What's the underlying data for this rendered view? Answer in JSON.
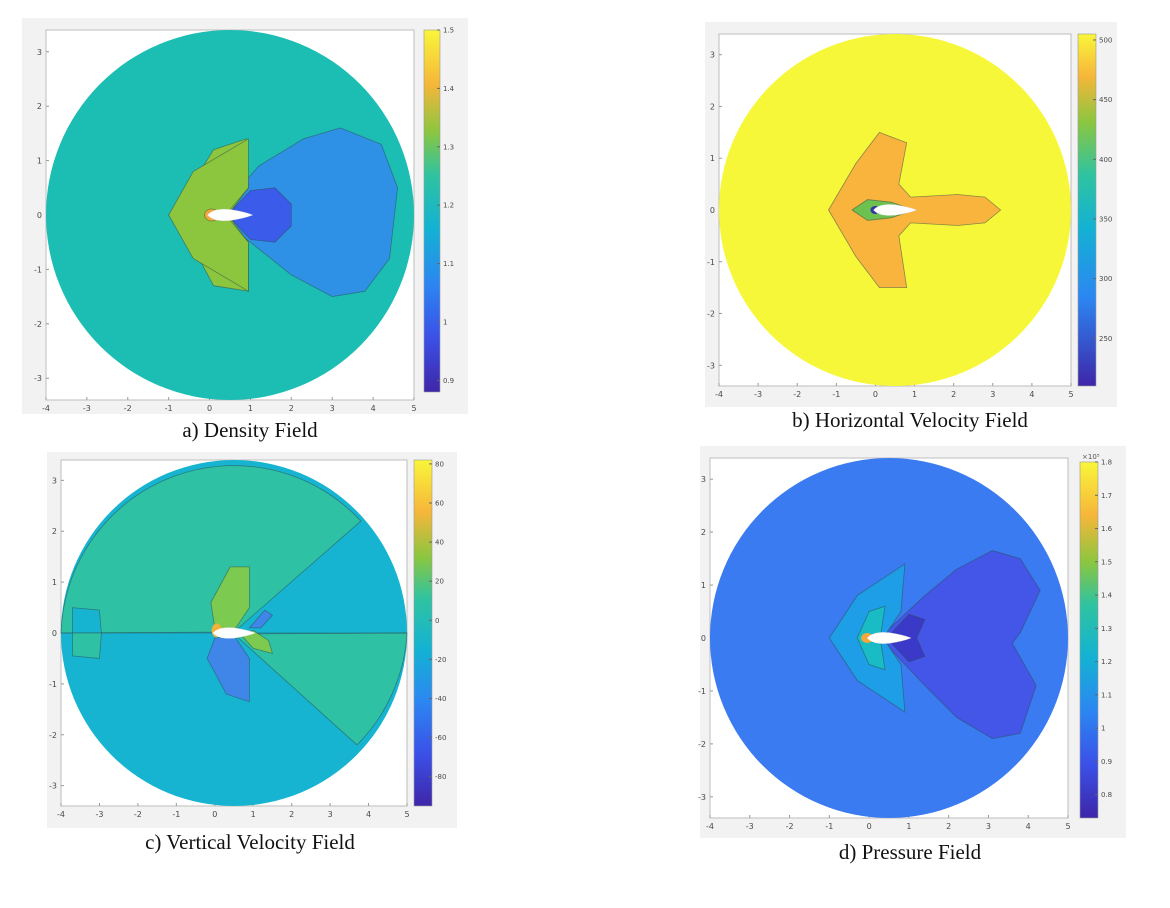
{
  "chart_data": [
    {
      "type": "heatmap",
      "caption": "a) Density Field",
      "xticks": [
        "-4",
        "-3",
        "-2",
        "-1",
        "0",
        "1",
        "2",
        "3",
        "4",
        "5"
      ],
      "yticks": [
        "3",
        "2",
        "1",
        "0",
        "-1",
        "-2",
        "-3"
      ],
      "xlim": [
        -4,
        5
      ],
      "ylim": [
        -3.4,
        3.4
      ],
      "colorbar": {
        "ticks": [
          "1.5",
          "1.4",
          "1.3",
          "1.2",
          "1.1",
          "1",
          "0.9"
        ],
        "range": [
          0.88,
          1.5
        ]
      },
      "regions": [
        {
          "name": "freestream",
          "value": 1.2,
          "color": "#1cbeb4"
        },
        {
          "name": "wake-low",
          "value": 1.1,
          "color": "#2f91e6"
        },
        {
          "name": "rear-core",
          "value": 1.0,
          "color": "#3b5bea"
        },
        {
          "name": "front-compression",
          "value": 1.3,
          "color": "#8cc63e"
        },
        {
          "name": "stagnation",
          "value": 1.4,
          "color": "#f5a93a"
        }
      ]
    },
    {
      "type": "heatmap",
      "caption": "b) Horizontal Velocity Field",
      "xticks": [
        "-4",
        "-3",
        "-2",
        "-1",
        "0",
        "1",
        "2",
        "3",
        "4",
        "5"
      ],
      "yticks": [
        "3",
        "2",
        "1",
        "0",
        "-1",
        "-2",
        "-3"
      ],
      "xlim": [
        -4,
        5
      ],
      "ylim": [
        -3.4,
        3.4
      ],
      "colorbar": {
        "ticks": [
          "500",
          "450",
          "400",
          "350",
          "300",
          "250"
        ],
        "range": [
          210,
          505
        ]
      },
      "regions": [
        {
          "name": "freestream",
          "value": 500,
          "color": "#f7f73a"
        },
        {
          "name": "front-slow",
          "value": 470,
          "color": "#f8b43d"
        },
        {
          "name": "near-body",
          "value": 400,
          "color": "#6cc14f"
        },
        {
          "name": "stagnation",
          "value": 250,
          "color": "#33389e"
        }
      ]
    },
    {
      "type": "heatmap",
      "caption": "c) Vertical Velocity Field",
      "xticks": [
        "-4",
        "-3",
        "-2",
        "-1",
        "0",
        "1",
        "2",
        "3",
        "4",
        "5"
      ],
      "yticks": [
        "3",
        "2",
        "1",
        "0",
        "-1",
        "-2",
        "-3"
      ],
      "xlim": [
        -4,
        5
      ],
      "ylim": [
        -3.4,
        3.4
      ],
      "colorbar": {
        "ticks": [
          "80",
          "60",
          "40",
          "20",
          "0",
          "-20",
          "-40",
          "-60",
          "-80"
        ],
        "range": [
          -95,
          82
        ]
      },
      "regions": [
        {
          "name": "upper-field",
          "value": 0,
          "color": "#2fc1a4"
        },
        {
          "name": "lower-field",
          "value": -10,
          "color": "#16b4d1"
        },
        {
          "name": "upward-lobe",
          "value": 20,
          "color": "#7cca4f"
        },
        {
          "name": "downward-lobe",
          "value": -40,
          "color": "#3f86e8"
        },
        {
          "name": "peak",
          "value": 60,
          "color": "#f1b23a"
        }
      ]
    },
    {
      "type": "heatmap",
      "caption": "d) Pressure Field",
      "xticks": [
        "-4",
        "-3",
        "-2",
        "-1",
        "0",
        "1",
        "2",
        "3",
        "4",
        "5"
      ],
      "yticks": [
        "3",
        "2",
        "1",
        "0",
        "-1",
        "-2",
        "-3"
      ],
      "xlim": [
        -4,
        5
      ],
      "ylim": [
        -3.4,
        3.4
      ],
      "colorbar": {
        "ticks": [
          "1.8",
          "1.7",
          "1.6",
          "1.5",
          "1.4",
          "1.3",
          "1.2",
          "1.1",
          "1",
          "0.9",
          "0.8"
        ],
        "range": [
          0.73,
          1.8
        ],
        "multiplier": "×10⁵"
      },
      "regions": [
        {
          "name": "freestream",
          "value": 1.0,
          "color": "#3a7bf1"
        },
        {
          "name": "wake-low",
          "value": 0.9,
          "color": "#4356e8"
        },
        {
          "name": "rear-core",
          "value": 0.8,
          "color": "#3b39c8"
        },
        {
          "name": "front-compression",
          "value": 1.1,
          "color": "#1e9ee6"
        },
        {
          "name": "front-inner",
          "value": 1.2,
          "color": "#19bcc4"
        },
        {
          "name": "stagnation",
          "value": 1.7,
          "color": "#f4a83a"
        }
      ]
    }
  ]
}
